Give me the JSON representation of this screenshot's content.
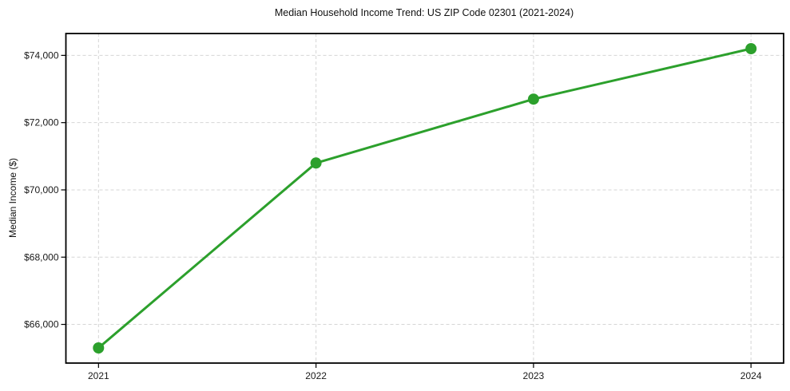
{
  "chart_data": {
    "type": "line",
    "title": "Median Household Income Trend: US ZIP Code 02301 (2021-2024)",
    "xlabel": "",
    "ylabel": "Median Income ($)",
    "categories": [
      "2021",
      "2022",
      "2023",
      "2024"
    ],
    "x": [
      2021,
      2022,
      2023,
      2024
    ],
    "series": [
      {
        "name": "Median Household Income",
        "values": [
          65300,
          70800,
          72700,
          74200
        ],
        "value_labels": [
          "$65,300",
          "$70,800",
          "$72,700",
          "$74,200"
        ],
        "color": "#2ca02c",
        "marker": "circle",
        "marker_size": 7,
        "line_width": 3
      }
    ],
    "xlim": [
      2020.85,
      2024.15
    ],
    "ylim": [
      64850,
      74650
    ],
    "yticks": [
      66000,
      68000,
      70000,
      72000,
      74000
    ],
    "ytick_labels": [
      "$66,000",
      "$68,000",
      "$70,000",
      "$72,000",
      "$74,000"
    ],
    "grid": true,
    "grid_style": "dashed",
    "grid_color": "#d5d5d5",
    "spine_color": "#000000",
    "background_color": "#ffffff",
    "legend": "none"
  }
}
